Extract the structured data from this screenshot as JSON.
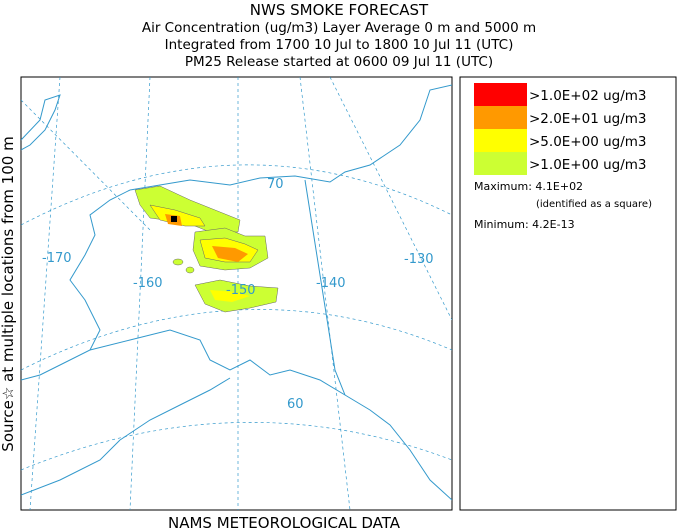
{
  "title": "NWS SMOKE FORECAST",
  "subtitle_lines": [
    "Air Concentration (ug/m3) Layer Average    0 m and  5000 m",
    "Integrated from 1700 10 Jul to 1800 10 Jul 11 (UTC)",
    "PM25 Release started at 0600 09 Jul 11 (UTC)"
  ],
  "side_label": "Source☆ at multiple locations  from   100 m",
  "footer": "NAMS METEOROLOGICAL DATA",
  "legend": {
    "entries": [
      {
        "label": ">1.0E+02 ug/m3",
        "color": "#ff0000"
      },
      {
        "label": ">2.0E+01 ug/m3",
        "color": "#ff9900"
      },
      {
        "label": ">5.0E+00 ug/m3",
        "color": "#ffff00"
      },
      {
        "label": ">1.0E+00 ug/m3",
        "color": "#ccff33"
      }
    ],
    "maximum": "Maximum: 4.1E+02",
    "maximum_note": "(identified as a square)",
    "minimum": "Minimum: 4.2E-13"
  },
  "map": {
    "lon_labels": [
      "-170",
      "-160",
      "-150",
      "-140",
      "-130"
    ],
    "lat_labels": [
      "70",
      "60"
    ]
  }
}
